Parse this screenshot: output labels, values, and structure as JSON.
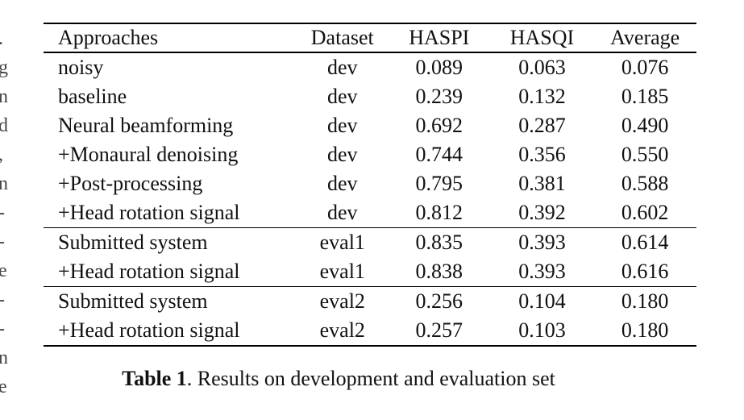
{
  "margin_fragment": [
    ".",
    "g",
    "n",
    "d",
    ",",
    "n",
    "-",
    "-",
    "e",
    "-",
    "-",
    "n",
    "e"
  ],
  "table": {
    "headers": [
      "Approaches",
      "Dataset",
      "HASPI",
      "HASQI",
      "Average"
    ],
    "groups": [
      {
        "rows": [
          [
            "noisy",
            "dev",
            "0.089",
            "0.063",
            "0.076"
          ],
          [
            "baseline",
            "dev",
            "0.239",
            "0.132",
            "0.185"
          ],
          [
            "Neural beamforming",
            "dev",
            "0.692",
            "0.287",
            "0.490"
          ],
          [
            "+Monaural denoising",
            "dev",
            "0.744",
            "0.356",
            "0.550"
          ],
          [
            "+Post-processing",
            "dev",
            "0.795",
            "0.381",
            "0.588"
          ],
          [
            "+Head rotation signal",
            "dev",
            "0.812",
            "0.392",
            "0.602"
          ]
        ]
      },
      {
        "rows": [
          [
            "Submitted system",
            "eval1",
            "0.835",
            "0.393",
            "0.614"
          ],
          [
            "+Head rotation signal",
            "eval1",
            "0.838",
            "0.393",
            "0.616"
          ]
        ]
      },
      {
        "rows": [
          [
            "Submitted system",
            "eval2",
            "0.256",
            "0.104",
            "0.180"
          ],
          [
            "+Head rotation signal",
            "eval2",
            "0.257",
            "0.103",
            "0.180"
          ]
        ]
      }
    ]
  },
  "caption": {
    "label": "Table 1",
    "text": ". Results on development and evaluation set"
  }
}
